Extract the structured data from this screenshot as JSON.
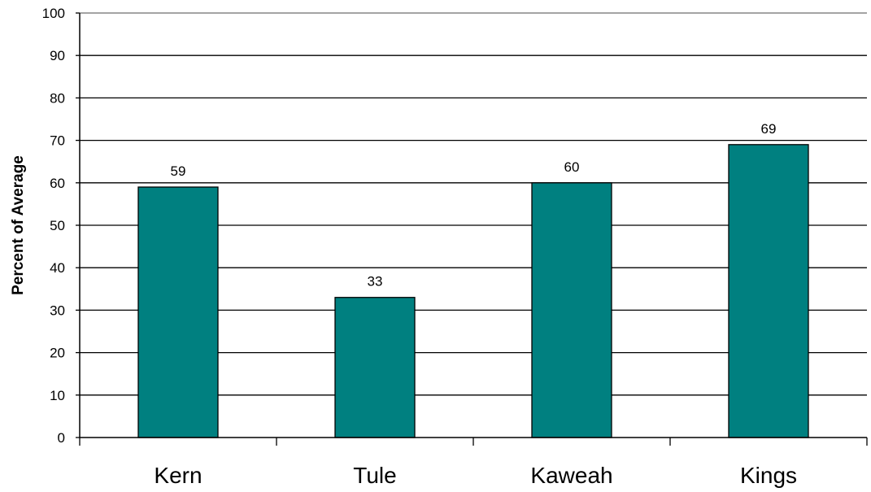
{
  "chart_data": {
    "type": "bar",
    "title": "",
    "xlabel": "",
    "ylabel": "Percent of Average",
    "categories": [
      "Kern",
      "Tule",
      "Kaweah",
      "Kings"
    ],
    "values": [
      59,
      33,
      60,
      69
    ],
    "ylim": [
      0,
      100
    ],
    "yticks": [
      "0",
      "10",
      "20",
      "30",
      "40",
      "50",
      "60",
      "70",
      "80",
      "90",
      "100"
    ],
    "data_labels": [
      "59",
      "33",
      "60",
      "69"
    ],
    "grid": true,
    "legend": "none",
    "bar_color": "#008080"
  }
}
